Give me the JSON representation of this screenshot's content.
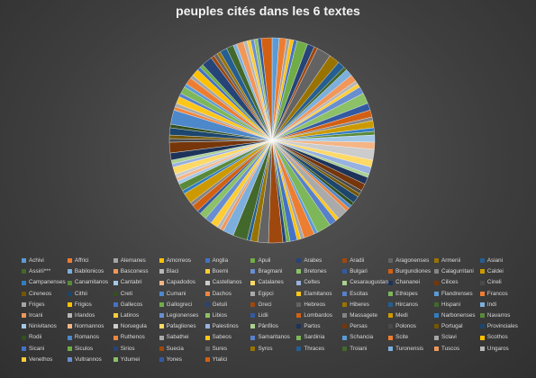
{
  "chart_data": {
    "type": "pie",
    "title": "peuples cités dans les 6 textes",
    "legend_position": "bottom",
    "categories": [
      "Achivi",
      "Affrici",
      "Alemanes",
      "Amorreos",
      "Anglia",
      "Apuli",
      "Arabes",
      "Aradii",
      "Aragonenses",
      "Armenii",
      "Asiani",
      "Assirii***",
      "Babilonicos",
      "Basconess",
      "Blaci",
      "Boemi",
      "Bragmani",
      "Bretones",
      "Bulgari",
      "Burgundiones",
      "Calagurritani",
      "Caldei",
      "Campanenses",
      "Canamitanos",
      "Cantabri",
      "Capadodos",
      "Castellanos",
      "Catalanes",
      "Celtes",
      "Cesaraugustani",
      "Chananei",
      "Cilices",
      "Cineli",
      "Cireneos",
      "Cithii",
      "Creti",
      "Cumani",
      "Dachos",
      "Egipci",
      "Elamitanos",
      "Escitas",
      "Ethiopes",
      "Flandrenses",
      "Francos",
      "Friges",
      "Frigios",
      "Gallecos",
      "Gallogreci",
      "Getuli",
      "Greci",
      "Hebreos",
      "Hiberes",
      "Hircanos",
      "Hispani",
      "Indi",
      "Ircani",
      "Irlandos",
      "Latinos",
      "Legionenses",
      "Libios",
      "Lidii",
      "Lombardos",
      "Massagete",
      "Medi",
      "Narbonenses",
      "Navarros",
      "Ninivitanos",
      "Normannos",
      "Noruegula",
      "Pafagliones",
      "Palestinos",
      "Pânfilos",
      "Partos",
      "Persas",
      "Polonos",
      "Portugal",
      "Provinciales",
      "Rodii",
      "Romanos",
      "Ruthenos",
      "Sabathei",
      "Sabeos",
      "Samaritanos",
      "Sardinia",
      "Schancia",
      "Scite",
      "Sclavi",
      "Scothos",
      "Sicani",
      "Siculos",
      "Sirios",
      "Suecia",
      "Sures",
      "Syros",
      "Thraces",
      "Troiani",
      "Turonensis",
      "Tuscos",
      "Ungaros",
      "Venethos",
      "Vultrannos",
      "Ydumei",
      "Yones",
      "Ytalici"
    ],
    "values": [
      2,
      2,
      1,
      1,
      1,
      3,
      2,
      1,
      4,
      3,
      2,
      1,
      2,
      2,
      1,
      1,
      2,
      3,
      2,
      2,
      1,
      2,
      1,
      1,
      2,
      2,
      3,
      2,
      2,
      1,
      2,
      2,
      1,
      1,
      2,
      1,
      1,
      1,
      3,
      1,
      2,
      4,
      1,
      3,
      1,
      1,
      2,
      1,
      1,
      4,
      3,
      2,
      1,
      4,
      3,
      1,
      1,
      2,
      2,
      2,
      1,
      2,
      1,
      3,
      1,
      2,
      1,
      1,
      1,
      2,
      1,
      1,
      2,
      3,
      1,
      1,
      2,
      1,
      4,
      1,
      1,
      2,
      1,
      2,
      1,
      2,
      1,
      2,
      1,
      1,
      3,
      1,
      1,
      1,
      2,
      2,
      1,
      2,
      1,
      1,
      1,
      1,
      1,
      3
    ],
    "colors": [
      "#5b9bd5",
      "#ed7d31",
      "#a5a5a5",
      "#ffc000",
      "#4472c4",
      "#70ad47",
      "#264478",
      "#9e480e",
      "#636363",
      "#997300",
      "#255e91",
      "#43682b",
      "#7cafdd",
      "#f1975a",
      "#b7b7b7",
      "#ffcd33",
      "#698ed0",
      "#8cc168",
      "#335aa1",
      "#d26012",
      "#848484",
      "#cc9a00",
      "#327dc2",
      "#5a8a39",
      "#a3c8e7",
      "#f5b585",
      "#cccccc",
      "#ffd966",
      "#97b1e0",
      "#a9d18e",
      "#1d3359",
      "#76360a",
      "#4a4a4a",
      "#735600",
      "#1c466d",
      "#325020",
      "#4d88cb",
      "#ee8640",
      "#aaaaaa",
      "#ffc61a",
      "#5880ca",
      "#7db75a"
    ]
  }
}
